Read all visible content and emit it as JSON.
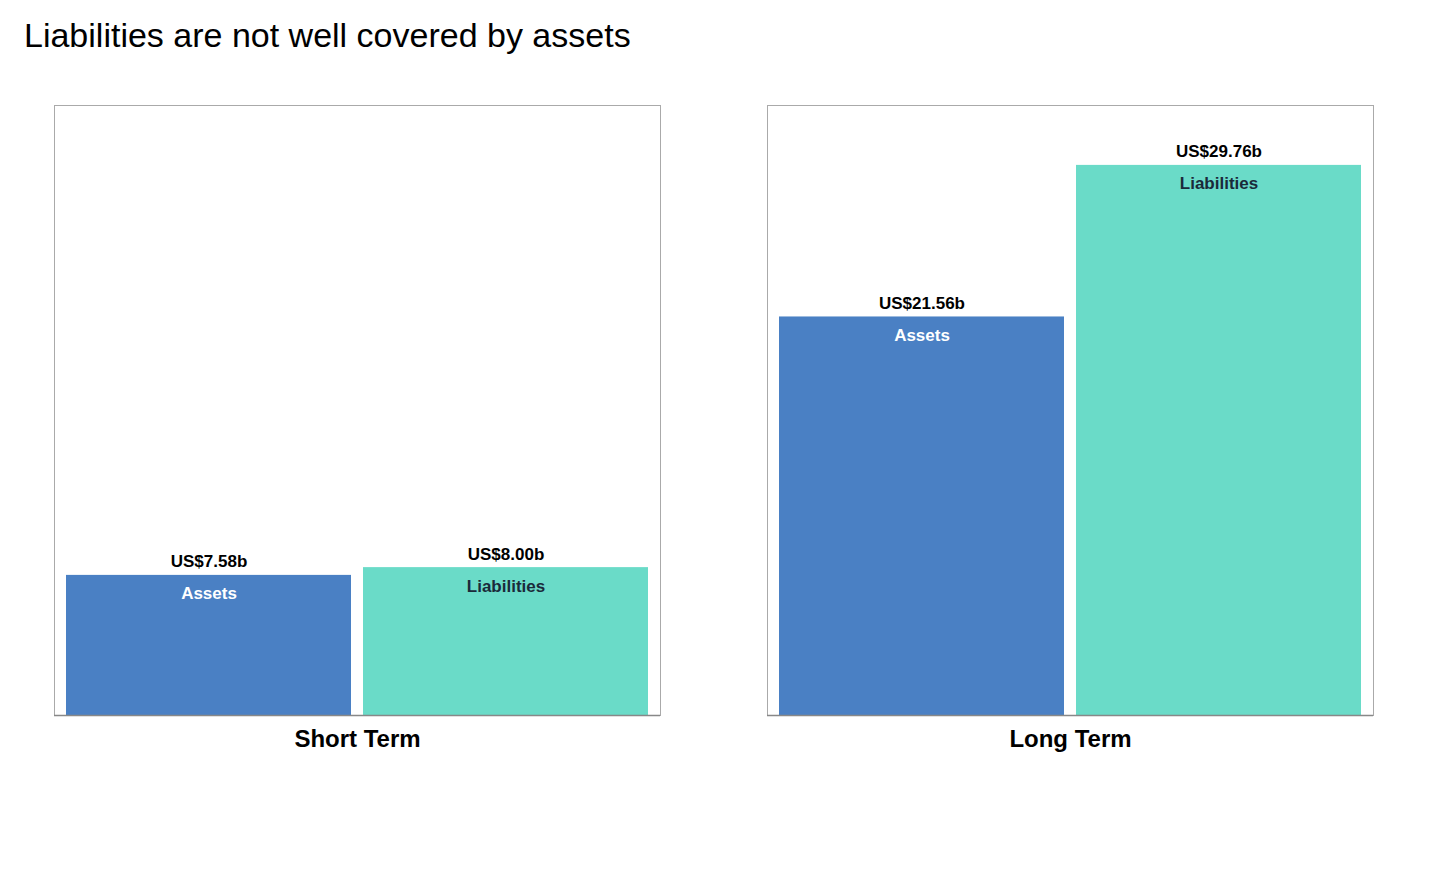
{
  "chart_data": {
    "type": "bar",
    "title": "Liabilities are not well covered by assets",
    "categories": [
      "Short Term",
      "Long Term"
    ],
    "series": [
      {
        "name": "Assets",
        "color": "#4a80c4",
        "values": [
          7.58,
          21.56
        ],
        "value_labels": [
          "US$7.58b",
          "US$21.56b"
        ]
      },
      {
        "name": "Liabilities",
        "color": "#6adbc8",
        "values": [
          8.0,
          29.76
        ],
        "value_labels": [
          "US$8.00b",
          "US$29.76b"
        ]
      }
    ],
    "ylim": [
      0,
      33
    ],
    "data_labels": true,
    "tick_labels": "x"
  }
}
